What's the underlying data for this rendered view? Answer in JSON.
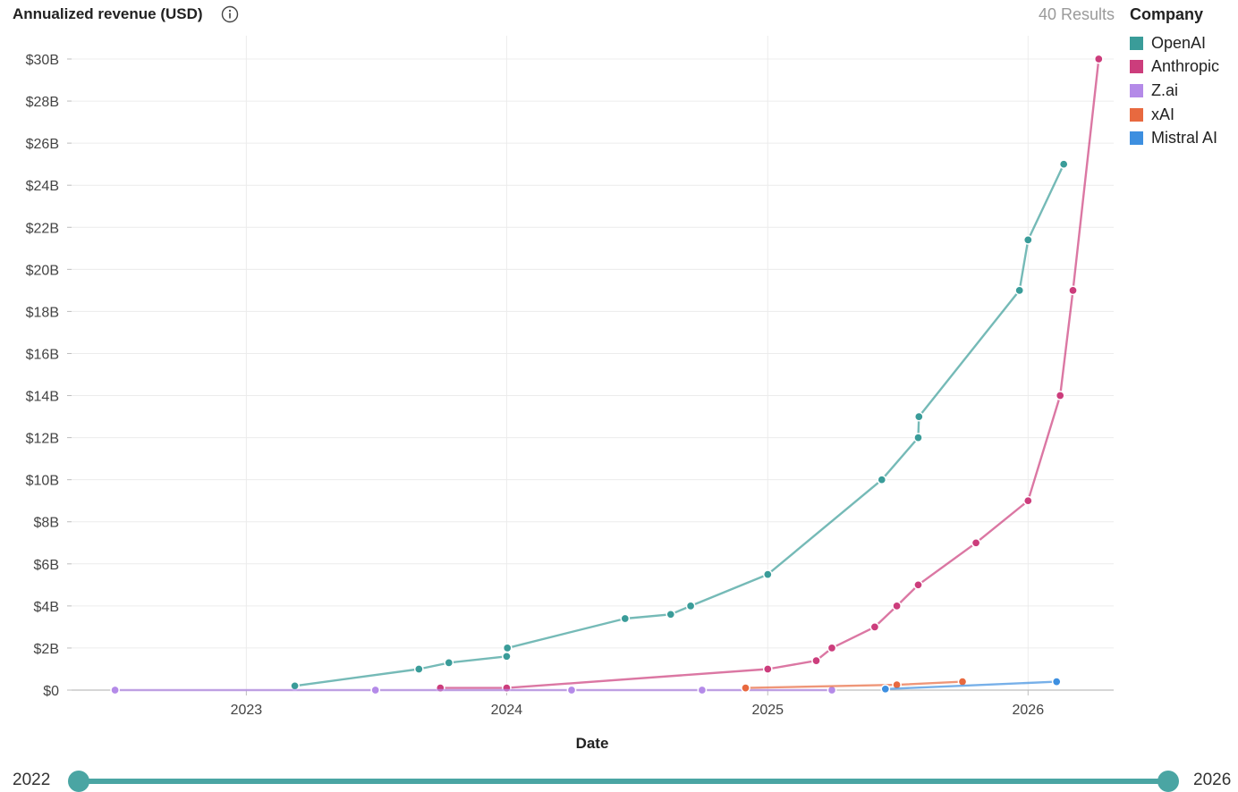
{
  "header": {
    "title": "Annualized revenue (USD)",
    "info_icon": "info-icon",
    "results_label": "40 Results"
  },
  "legend": {
    "title": "Company",
    "items": [
      {
        "label": "OpenAI",
        "color": "#3a9c99"
      },
      {
        "label": "Anthropic",
        "color": "#cc3d7c"
      },
      {
        "label": "Z.ai",
        "color": "#b48ae8"
      },
      {
        "label": "xAI",
        "color": "#e8693f"
      },
      {
        "label": "Mistral AI",
        "color": "#3d8fe0"
      }
    ]
  },
  "slider": {
    "min_label": "2022",
    "max_label": "2026"
  },
  "chart_data": {
    "type": "line",
    "title": "Annualized revenue (USD)",
    "xlabel": "Date",
    "ylabel": "Annualized revenue (USD)",
    "x_range": [
      "2022-05-01",
      "2026-05-01"
    ],
    "x_ticks": [
      "2023",
      "2024",
      "2025",
      "2026"
    ],
    "ylim": [
      0,
      30
    ],
    "y_unit": "billion USD",
    "y_ticks": [
      "$0",
      "$2B",
      "$4B",
      "$6B",
      "$8B",
      "$10B",
      "$12B",
      "$14B",
      "$16B",
      "$18B",
      "$20B",
      "$22B",
      "$24B",
      "$26B",
      "$28B",
      "$30B"
    ],
    "grid": true,
    "legend_position": "right",
    "series": [
      {
        "name": "OpenAI",
        "color": "#3a9c99",
        "points": [
          [
            "2023-03-10",
            0.2
          ],
          [
            "2023-08-31",
            1.0
          ],
          [
            "2023-10-12",
            1.3
          ],
          [
            "2024-01-01",
            1.6
          ],
          [
            "2024-01-02",
            2.0
          ],
          [
            "2024-06-15",
            3.4
          ],
          [
            "2024-08-18",
            3.6
          ],
          [
            "2024-09-15",
            4.0
          ],
          [
            "2025-01-01",
            5.5
          ],
          [
            "2025-06-10",
            10.0
          ],
          [
            "2025-07-31",
            12.0
          ],
          [
            "2025-08-01",
            13.0
          ],
          [
            "2025-12-20",
            19.0
          ],
          [
            "2026-01-01",
            21.4
          ],
          [
            "2026-02-20",
            25.0
          ]
        ]
      },
      {
        "name": "Anthropic",
        "color": "#cc3d7c",
        "points": [
          [
            "2023-09-30",
            0.1
          ],
          [
            "2024-01-01",
            0.1
          ],
          [
            "2025-01-01",
            1.0
          ],
          [
            "2025-03-10",
            1.4
          ],
          [
            "2025-04-01",
            2.0
          ],
          [
            "2025-05-31",
            3.0
          ],
          [
            "2025-07-01",
            4.0
          ],
          [
            "2025-07-31",
            5.0
          ],
          [
            "2025-10-20",
            7.0
          ],
          [
            "2026-01-01",
            9.0
          ],
          [
            "2026-02-15",
            14.0
          ],
          [
            "2026-03-05",
            19.0
          ],
          [
            "2026-04-10",
            30.0
          ]
        ]
      },
      {
        "name": "Z.ai",
        "color": "#b48ae8",
        "points": [
          [
            "2022-07-01",
            0.0
          ],
          [
            "2023-07-01",
            0.0
          ],
          [
            "2024-04-01",
            0.0
          ],
          [
            "2024-10-01",
            0.0
          ],
          [
            "2025-04-01",
            0.0
          ]
        ]
      },
      {
        "name": "xAI",
        "color": "#e8693f",
        "points": [
          [
            "2024-12-01",
            0.1
          ],
          [
            "2025-07-01",
            0.25
          ],
          [
            "2025-10-01",
            0.4
          ]
        ]
      },
      {
        "name": "Mistral AI",
        "color": "#3d8fe0",
        "points": [
          [
            "2025-06-15",
            0.05
          ],
          [
            "2026-02-10",
            0.4
          ]
        ]
      }
    ]
  }
}
